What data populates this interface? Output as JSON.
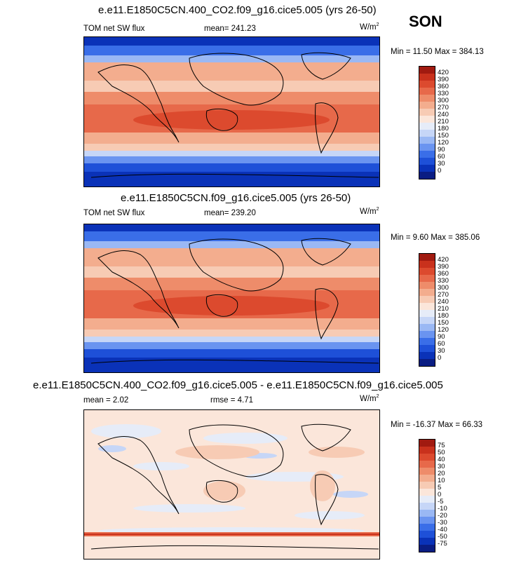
{
  "season": "SON",
  "panels": [
    {
      "title": "e.e11.E1850C5CN.400_CO2.f09_g16.cice5.005 (yrs 26-50)",
      "left_label": "TOM net SW flux",
      "center_label": "mean= 241.23",
      "units_base": "W/m",
      "units_sup": "2",
      "minmax": "Min =  11.50 Max = 384.13",
      "kind": "abs",
      "colorbar": {
        "colors": [
          "#0a1d83",
          "#0a32b8",
          "#1e50d8",
          "#3a6ee8",
          "#6a94f0",
          "#9ab8f4",
          "#c6d6f7",
          "#e6ecf8",
          "#fbe6da",
          "#f7cbb4",
          "#f3ad8e",
          "#ee8c6a",
          "#e7694a",
          "#dc4a2e",
          "#c9311c",
          "#a11a10"
        ],
        "labels": [
          "420",
          "390",
          "360",
          "330",
          "300",
          "270",
          "240",
          "210",
          "180",
          "150",
          "120",
          "90",
          "60",
          "30",
          "0"
        ]
      }
    },
    {
      "title": "e.e11.E1850C5CN.f09_g16.cice5.005 (yrs 26-50)",
      "left_label": "TOM net SW flux",
      "center_label": "mean= 239.20",
      "units_base": "W/m",
      "units_sup": "2",
      "minmax": "Min =   9.60 Max = 385.06",
      "kind": "abs",
      "colorbar": {
        "colors": [
          "#0a1d83",
          "#0a32b8",
          "#1e50d8",
          "#3a6ee8",
          "#6a94f0",
          "#9ab8f4",
          "#c6d6f7",
          "#e6ecf8",
          "#fbe6da",
          "#f7cbb4",
          "#f3ad8e",
          "#ee8c6a",
          "#e7694a",
          "#dc4a2e",
          "#c9311c",
          "#a11a10"
        ],
        "labels": [
          "420",
          "390",
          "360",
          "330",
          "300",
          "270",
          "240",
          "210",
          "180",
          "150",
          "120",
          "90",
          "60",
          "30",
          "0"
        ]
      }
    },
    {
      "title": "e.e11.E1850C5CN.400_CO2.f09_g16.cice5.005 - e.e11.E1850C5CN.f09_g16.cice5.005",
      "left_label": "mean =   2.02",
      "center_label": "rmse =   4.71",
      "units_base": "W/m",
      "units_sup": "2",
      "minmax": "Min = -16.37 Max =  66.33",
      "kind": "diff",
      "colorbar": {
        "colors": [
          "#0a1d83",
          "#0a32b8",
          "#1e50d8",
          "#3a6ee8",
          "#6a94f0",
          "#9ab8f4",
          "#c6d6f7",
          "#e6ecf8",
          "#fbe6da",
          "#f7cbb4",
          "#f3ad8e",
          "#ee8c6a",
          "#e7694a",
          "#dc4a2e",
          "#c9311c",
          "#a11a10"
        ],
        "labels": [
          "75",
          "50",
          "40",
          "30",
          "20",
          "10",
          "5",
          "0",
          "-5",
          "-10",
          "-20",
          "-30",
          "-40",
          "-50",
          "-75"
        ]
      }
    }
  ]
}
